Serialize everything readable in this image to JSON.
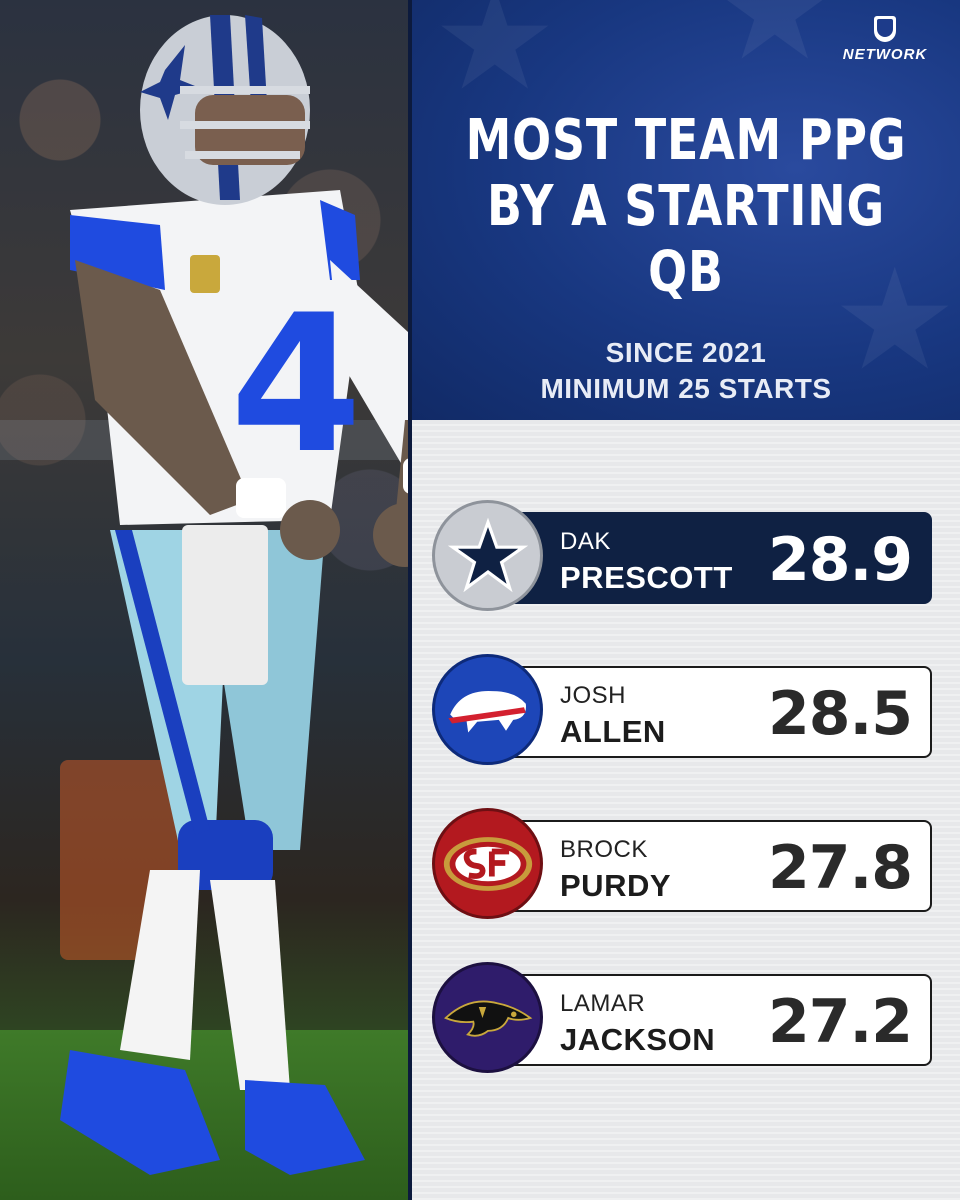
{
  "brand": {
    "name": "NETWORK",
    "league": "NFL"
  },
  "title": {
    "line1": "MOST TEAM PPG",
    "line2": "BY A STARTING QB"
  },
  "subtitle": {
    "line1": "SINCE 2021",
    "line2": "MINIMUM 25 STARTS"
  },
  "player_photo": {
    "jersey_number": "4"
  },
  "colors": {
    "header_blue": "#183780",
    "highlight_navy": "#0f2143",
    "panel_gray": "#e7e8ea"
  },
  "rankings": [
    {
      "first": "DAK",
      "last": "PRESCOTT",
      "value": "28.9",
      "team_icon": "cowboys-star-icon",
      "highlight": true
    },
    {
      "first": "JOSH",
      "last": "ALLEN",
      "value": "28.5",
      "team_icon": "bills-buffalo-icon",
      "highlight": false
    },
    {
      "first": "BROCK",
      "last": "PURDY",
      "value": "27.8",
      "team_icon": "49ers-sf-icon",
      "highlight": false
    },
    {
      "first": "LAMAR",
      "last": "JACKSON",
      "value": "27.2",
      "team_icon": "ravens-raven-icon",
      "highlight": false
    }
  ]
}
